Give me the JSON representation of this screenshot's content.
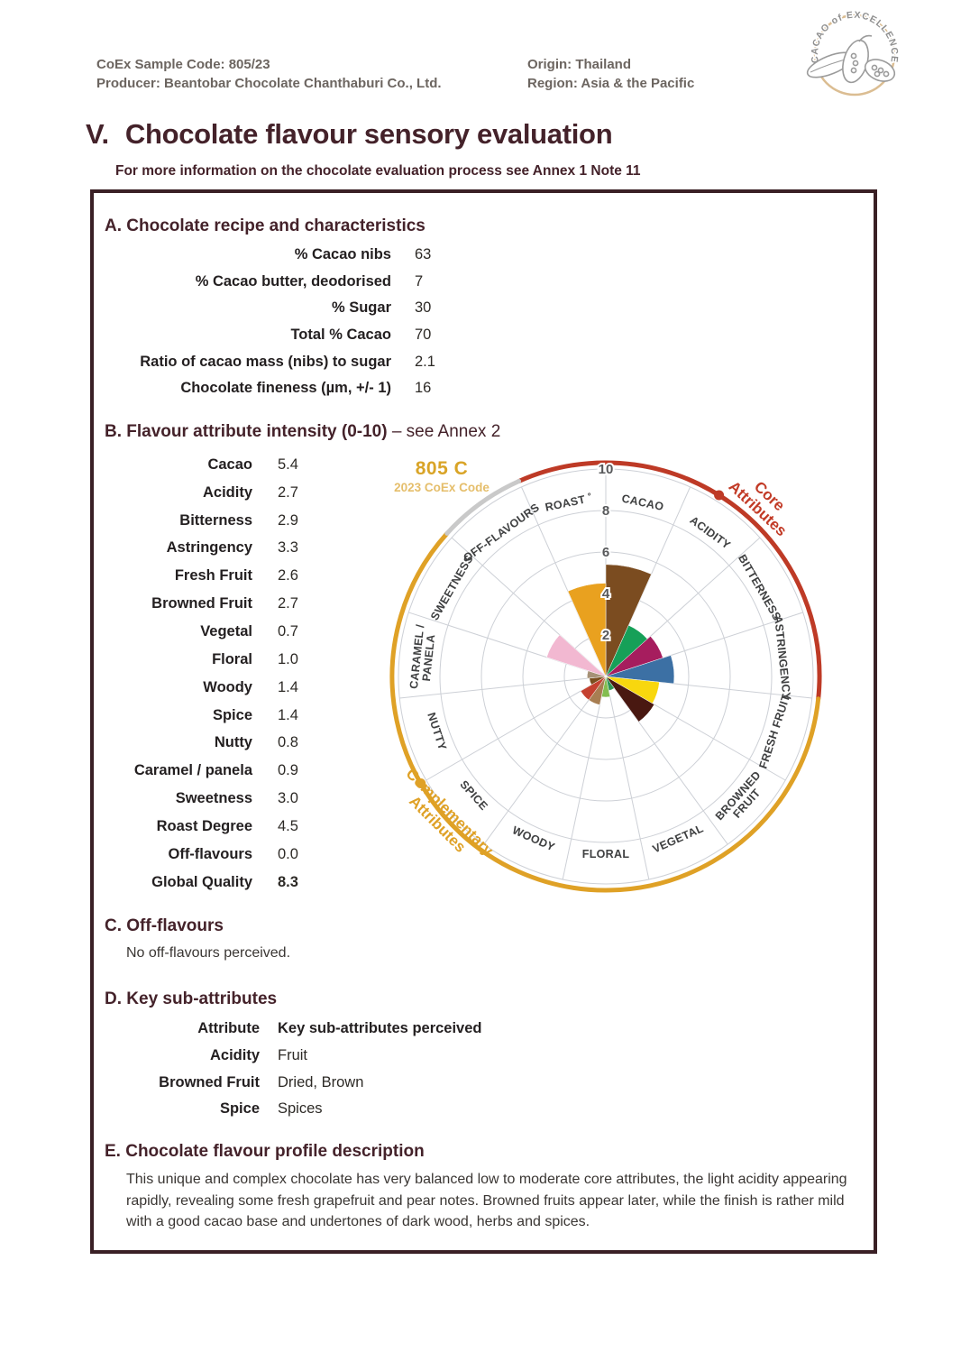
{
  "header": {
    "sample_code": "CoEx Sample Code: 805/23",
    "producer": "Producer: Beantobar Chocolate Chanthaburi Co., Ltd.",
    "origin": "Origin: Thailand",
    "region": "Region: Asia & the Pacific",
    "logo_text": "CACAO of EXCELLENCE"
  },
  "title": {
    "number": "V.",
    "text": "Chocolate flavour sensory evaluation"
  },
  "subtitle": "For more information on the chocolate evaluation process see Annex 1 Note 11",
  "section_a": {
    "heading": "A. Chocolate recipe and characteristics",
    "rows": [
      {
        "label": "% Cacao nibs",
        "value": "63"
      },
      {
        "label": "% Cacao butter, deodorised",
        "value": "7"
      },
      {
        "label": "% Sugar",
        "value": "30"
      },
      {
        "label": "Total % Cacao",
        "value": "70"
      },
      {
        "label": "Ratio of cacao mass (nibs) to sugar",
        "value": "2.1"
      },
      {
        "label": "Chocolate fineness (µm, +/- 1)",
        "value": "16"
      }
    ]
  },
  "section_b": {
    "heading_bold": "B. Flavour attribute intensity (0-10)",
    "heading_rest": " – see Annex 2",
    "attributes": [
      {
        "label": "Cacao",
        "value": "5.4"
      },
      {
        "label": "Acidity",
        "value": "2.7"
      },
      {
        "label": "Bitterness",
        "value": "2.9"
      },
      {
        "label": "Astringency",
        "value": "3.3"
      },
      {
        "label": "Fresh Fruit",
        "value": "2.6"
      },
      {
        "label": "Browned Fruit",
        "value": "2.7"
      },
      {
        "label": "Vegetal",
        "value": "0.7"
      },
      {
        "label": "Floral",
        "value": "1.0"
      },
      {
        "label": "Woody",
        "value": "1.4"
      },
      {
        "label": "Spice",
        "value": "1.4"
      },
      {
        "label": "Nutty",
        "value": "0.8"
      },
      {
        "label": "Caramel / panela",
        "value": "0.9"
      },
      {
        "label": "Sweetness",
        "value": "3.0"
      },
      {
        "label": "Roast Degree",
        "value": "4.5"
      },
      {
        "label": "Off-flavours",
        "value": "0.0"
      },
      {
        "label": "Global Quality",
        "value": "8.3",
        "bold": true
      }
    ]
  },
  "chart_data": {
    "type": "polar-rose",
    "code": "805 C",
    "code_caption": "2023 CoEx Code",
    "rmax": 10,
    "grid_values": [
      2,
      4,
      6,
      8,
      10
    ],
    "tick_labels": [
      10,
      8,
      6,
      4,
      2
    ],
    "sectors": [
      {
        "label": "CACAO",
        "value": 5.4,
        "color": "#7b4c20",
        "group": "core"
      },
      {
        "label": "ACIDITY",
        "value": 2.7,
        "color": "#16a058",
        "group": "core"
      },
      {
        "label": "BITTERNESS",
        "value": 2.9,
        "color": "#a61d5e",
        "group": "core"
      },
      {
        "label": "ASTRINGENCY",
        "value": 3.3,
        "color": "#3c70a4",
        "group": "core"
      },
      {
        "label": "FRESH FRUIT",
        "value": 2.6,
        "color": "#f8d70e",
        "group": "complementary"
      },
      {
        "label": "BROWNED FRUIT",
        "lines": [
          "BROWNED",
          "FRUIT"
        ],
        "value": 2.7,
        "color": "#491811",
        "group": "complementary"
      },
      {
        "label": "VEGETAL",
        "value": 0.7,
        "color": "#2f9657",
        "group": "complementary"
      },
      {
        "label": "FLORAL",
        "value": 1.0,
        "color": "#83bd4f",
        "group": "complementary"
      },
      {
        "label": "WOODY",
        "value": 1.4,
        "color": "#a87e52",
        "group": "complementary"
      },
      {
        "label": "SPICE",
        "value": 1.4,
        "color": "#c44130",
        "group": "complementary"
      },
      {
        "label": "NUTTY",
        "value": 0.8,
        "color": "#7a4e1f",
        "group": "complementary"
      },
      {
        "label": "CARAMEL / PANELA",
        "lines": [
          "CARAMEL /",
          "PANELA"
        ],
        "value": 0.9,
        "color": "#a69176",
        "group": "complementary"
      },
      {
        "label": "SWEETNESS",
        "value": 3.0,
        "color": "#f2b8d1",
        "group": "complementary"
      },
      {
        "label": "OFF-FLAVOURS",
        "value": 0.0,
        "color": "#c9c9c9",
        "group": "off"
      },
      {
        "label": "ROAST ˚",
        "value": 4.5,
        "color": "#e9a11f",
        "group": "core"
      }
    ],
    "ring_arcs": [
      {
        "name": "core",
        "start_deg": 336,
        "end_deg": 456,
        "color": "#be3a26"
      },
      {
        "name": "complementary",
        "start_deg": 96,
        "end_deg": 312,
        "color": "#dfa126"
      },
      {
        "name": "off",
        "start_deg": 312,
        "end_deg": 336,
        "color": "#c9c9c9"
      }
    ],
    "ring_dots": [
      {
        "deg": 32,
        "color": "#be3a26"
      },
      {
        "deg": 240,
        "color": "#dfa126"
      }
    ],
    "legend": {
      "core_lines": [
        "Core",
        "Attributes"
      ],
      "complementary_lines": [
        "Complementary",
        "Attributes"
      ]
    }
  },
  "section_c": {
    "heading": "C. Off-flavours",
    "text": "No off-flavours perceived."
  },
  "section_d": {
    "heading": "D. Key sub-attributes",
    "col1": "Attribute",
    "col2": "Key sub-attributes perceived",
    "rows": [
      {
        "attribute": "Acidity",
        "perceived": "Fruit"
      },
      {
        "attribute": "Browned Fruit",
        "perceived": "Dried, Brown"
      },
      {
        "attribute": "Spice",
        "perceived": "Spices"
      }
    ]
  },
  "section_e": {
    "heading": "E. Chocolate flavour profile description",
    "text": "This unique and complex chocolate has very balanced low to moderate core attributes, the light acidity appearing rapidly, revealing some fresh grapefruit and pear notes. Browned fruits appear later, while the finish is rather mild with a good cacao base and undertones of dark wood, herbs and spices."
  }
}
